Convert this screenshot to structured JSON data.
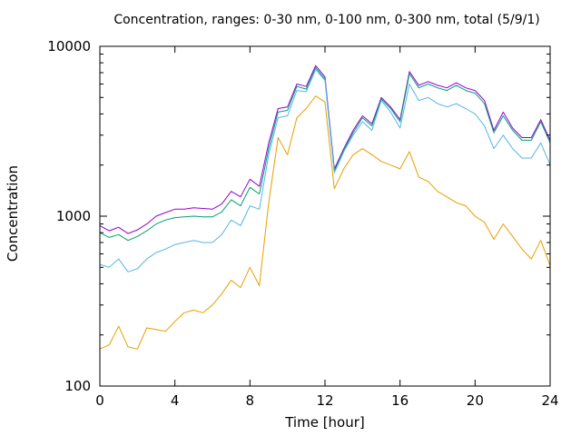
{
  "chart_data": {
    "type": "line",
    "title": "Concentration, ranges: 0-30 nm, 0-100 nm, 0-300 nm, total (5/9/1)",
    "xlabel": "Time [hour]",
    "ylabel": "Concentration",
    "xlim": [
      0,
      24
    ],
    "ylim": [
      100,
      10000
    ],
    "yscale": "log",
    "xticks": [
      "0",
      "4",
      "8",
      "12",
      "16",
      "20",
      "24"
    ],
    "yticks": [
      "100",
      "1000",
      "10000"
    ],
    "grid": false,
    "legend": "none",
    "x": [
      0,
      0.5,
      1,
      1.5,
      2,
      2.5,
      3,
      3.5,
      4,
      4.5,
      5,
      5.5,
      6,
      6.5,
      7,
      7.5,
      8,
      8.5,
      9,
      9.5,
      10,
      10.5,
      11,
      11.5,
      12,
      12.5,
      13,
      13.5,
      14,
      14.5,
      15,
      15.5,
      16,
      16.5,
      17,
      17.5,
      18,
      18.5,
      19,
      19.5,
      20,
      20.5,
      21,
      21.5,
      22,
      22.5,
      23,
      23.5,
      24
    ],
    "series": [
      {
        "color": "#9400d3",
        "values": [
          880,
          820,
          860,
          790,
          830,
          900,
          1000,
          1050,
          1100,
          1100,
          1120,
          1110,
          1100,
          1180,
          1400,
          1300,
          1650,
          1500,
          2700,
          4300,
          4400,
          6000,
          5800,
          7700,
          6600,
          1900,
          2500,
          3200,
          3900,
          3500,
          5000,
          4400,
          3700,
          7100,
          5900,
          6200,
          5900,
          5700,
          6100,
          5700,
          5500,
          4800,
          3200,
          4100,
          3300,
          2900,
          2900,
          3700,
          2800
        ]
      },
      {
        "color": "#009e73",
        "values": [
          800,
          750,
          780,
          720,
          760,
          820,
          900,
          950,
          980,
          990,
          1000,
          990,
          990,
          1060,
          1250,
          1150,
          1480,
          1350,
          2500,
          4100,
          4200,
          5800,
          5600,
          7500,
          6400,
          1850,
          2450,
          3100,
          3800,
          3400,
          4900,
          4300,
          3600,
          6900,
          5700,
          6000,
          5700,
          5500,
          5900,
          5500,
          5300,
          4600,
          3100,
          3900,
          3200,
          2800,
          2800,
          3600,
          2700
        ]
      },
      {
        "color": "#56b4e9",
        "values": [
          520,
          500,
          560,
          470,
          490,
          560,
          610,
          640,
          680,
          700,
          720,
          700,
          700,
          780,
          950,
          880,
          1150,
          1100,
          2300,
          3800,
          3900,
          5500,
          5400,
          7300,
          6300,
          1800,
          2400,
          3000,
          3600,
          3200,
          4800,
          4100,
          3300,
          6000,
          4800,
          5000,
          4600,
          4400,
          4600,
          4300,
          4000,
          3400,
          2500,
          3000,
          2500,
          2200,
          2200,
          2700,
          2000
        ]
      },
      {
        "color": "#e69f00",
        "values": [
          165,
          175,
          225,
          170,
          165,
          220,
          215,
          210,
          240,
          270,
          280,
          270,
          300,
          350,
          420,
          380,
          500,
          390,
          1200,
          2900,
          2300,
          3800,
          4300,
          5100,
          4700,
          1450,
          1900,
          2300,
          2500,
          2300,
          2100,
          2000,
          1900,
          2400,
          1700,
          1600,
          1400,
          1300,
          1200,
          1150,
          1000,
          920,
          730,
          900,
          760,
          640,
          560,
          720,
          510
        ]
      }
    ]
  }
}
